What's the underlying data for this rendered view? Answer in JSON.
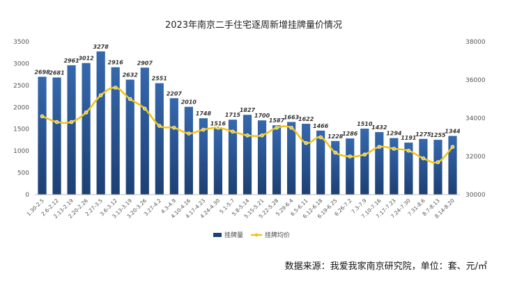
{
  "chart_data": {
    "type": "bar",
    "title": "2023年南京二手住宅逐周新增挂牌量价情况",
    "categories": [
      "1.30-2.5",
      "2.6-2.12",
      "2.13-2.19",
      "2.20-2.26",
      "2.27-3.5",
      "3.6-3.12",
      "3.13-3.19",
      "3.20-3.26",
      "3.27-4.2",
      "4.3-4.9",
      "4.10-4.16",
      "4.17-4.23",
      "4.24-4.30",
      "5.1-5.7",
      "5.8-5.14",
      "5.15-5.21",
      "5.22-5.28",
      "5.29-6.4",
      "6.5-6.11",
      "6.12-6.18",
      "6.19-6.25",
      "6.26-7.2",
      "7.3-7.9",
      "7.10-7.16",
      "7.17-7.23",
      "7.24-7.30",
      "7.31-8.6",
      "8.7-8.13",
      "8.14-8.20"
    ],
    "series": [
      {
        "name": "挂牌量",
        "type": "bar",
        "axis": "left",
        "values": [
          2698,
          2681,
          2961,
          3012,
          3278,
          2916,
          2632,
          2907,
          2551,
          2207,
          2010,
          1748,
          1516,
          1715,
          1827,
          1700,
          1587,
          1663,
          1622,
          1466,
          1228,
          1286,
          1510,
          1432,
          1294,
          1191,
          1275,
          1255,
          1344
        ]
      },
      {
        "name": "挂牌均价",
        "type": "line",
        "axis": "right",
        "values": [
          34100,
          33800,
          33800,
          34300,
          35200,
          35600,
          35000,
          34500,
          33600,
          33500,
          33200,
          33400,
          33500,
          33300,
          33100,
          33100,
          33500,
          33500,
          32700,
          33000,
          32200,
          32000,
          32100,
          32500,
          32400,
          32300,
          31900,
          31700,
          32500
        ]
      }
    ],
    "ylim_left": [
      0,
      3500
    ],
    "yticks_left": [
      0,
      500,
      1000,
      1500,
      2000,
      2500,
      3000,
      3500
    ],
    "ylim_right": [
      30000,
      38000
    ],
    "yticks_right": [
      30000,
      32000,
      34000,
      36000,
      38000
    ],
    "legend_position": "bottom-center",
    "grid": false,
    "colors": {
      "bar": "#2a5a9b",
      "bar_dark": "#1d3f73",
      "line": "#f0c419",
      "marker_edge": "#ffffff"
    }
  },
  "source_note": "数据来源：我爱我家南京研究院，单位：套、元/㎡"
}
